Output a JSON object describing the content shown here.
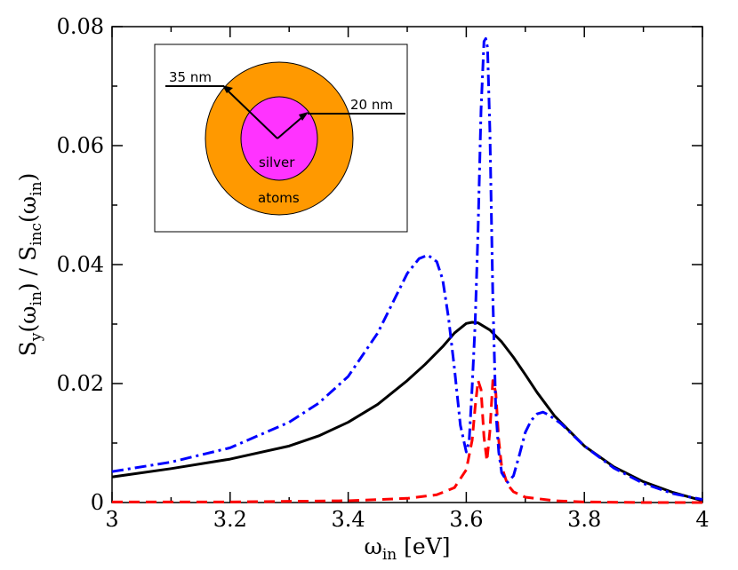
{
  "chart_data": {
    "type": "line",
    "title": "",
    "xlabel": {
      "main": "ω",
      "sub": "in",
      "unit": " [eV]"
    },
    "ylabel": {
      "p1": "S",
      "s1": "y",
      "p2": "(ω",
      "s2": "in",
      "p3": ") / S",
      "s3": "inc",
      "p4": "(ω",
      "s4": "in",
      "p5": ")"
    },
    "xlim": [
      3,
      4
    ],
    "ylim": [
      0,
      0.08
    ],
    "xticks": [
      "3",
      "3.2",
      "3.4",
      "3.6",
      "3.8",
      "4"
    ],
    "yticks": [
      "0",
      "0.02",
      "0.04",
      "0.06",
      "0.08"
    ],
    "grid": false,
    "series": [
      {
        "color": "#000000",
        "style": "solid",
        "x": [
          3.0,
          3.1,
          3.2,
          3.3,
          3.35,
          3.4,
          3.45,
          3.5,
          3.53,
          3.56,
          3.58,
          3.6,
          3.61,
          3.62,
          3.64,
          3.66,
          3.68,
          3.7,
          3.72,
          3.75,
          3.8,
          3.85,
          3.9,
          3.95,
          4.0
        ],
        "y": [
          0.0043,
          0.0057,
          0.0073,
          0.0095,
          0.0112,
          0.0135,
          0.0165,
          0.0205,
          0.0232,
          0.0262,
          0.0285,
          0.0301,
          0.0303,
          0.0302,
          0.029,
          0.027,
          0.0244,
          0.0215,
          0.0185,
          0.0145,
          0.0095,
          0.006,
          0.0035,
          0.0017,
          0.0003
        ]
      },
      {
        "color": "#0000ff",
        "style": "dash-dot",
        "x": [
          3.0,
          3.1,
          3.2,
          3.3,
          3.35,
          3.4,
          3.45,
          3.48,
          3.5,
          3.52,
          3.535,
          3.55,
          3.56,
          3.57,
          3.58,
          3.59,
          3.6,
          3.605,
          3.61,
          3.615,
          3.62,
          3.625,
          3.63,
          3.633,
          3.636,
          3.64,
          3.645,
          3.65,
          3.655,
          3.66,
          3.67,
          3.68,
          3.69,
          3.7,
          3.71,
          3.72,
          3.73,
          3.74,
          3.76,
          3.8,
          3.85,
          3.9,
          3.95,
          4.0
        ],
        "y": [
          0.0052,
          0.0068,
          0.0092,
          0.0135,
          0.0167,
          0.0212,
          0.0285,
          0.0345,
          0.0385,
          0.041,
          0.0416,
          0.0405,
          0.0375,
          0.031,
          0.0225,
          0.013,
          0.0085,
          0.0105,
          0.0195,
          0.03,
          0.046,
          0.066,
          0.0775,
          0.078,
          0.0765,
          0.0625,
          0.0345,
          0.0155,
          0.0085,
          0.005,
          0.0034,
          0.0045,
          0.008,
          0.0118,
          0.0138,
          0.0149,
          0.0152,
          0.0147,
          0.0133,
          0.0095,
          0.0058,
          0.0032,
          0.0015,
          0.0005
        ]
      },
      {
        "color": "#ff0000",
        "style": "dashed",
        "x": [
          3.0,
          3.1,
          3.2,
          3.3,
          3.4,
          3.5,
          3.55,
          3.58,
          3.6,
          3.61,
          3.615,
          3.62,
          3.625,
          3.63,
          3.635,
          3.64,
          3.645,
          3.65,
          3.655,
          3.66,
          3.67,
          3.68,
          3.7,
          3.75,
          3.8,
          3.9,
          4.0
        ],
        "y": [
          0.0001,
          0.0001,
          0.0001,
          0.0002,
          0.0003,
          0.0007,
          0.0013,
          0.0025,
          0.0055,
          0.0105,
          0.016,
          0.0205,
          0.019,
          0.011,
          0.007,
          0.012,
          0.0205,
          0.0185,
          0.0105,
          0.006,
          0.003,
          0.0018,
          0.0009,
          0.0003,
          0.0001,
          0.0,
          0.0
        ]
      }
    ]
  },
  "inset": {
    "label_outer": "35 nm",
    "label_inner": "20 nm",
    "label_core": "silver",
    "label_shell": "atoms",
    "colors": {
      "shell": "#ff9900",
      "core": "#ff33ff"
    }
  }
}
